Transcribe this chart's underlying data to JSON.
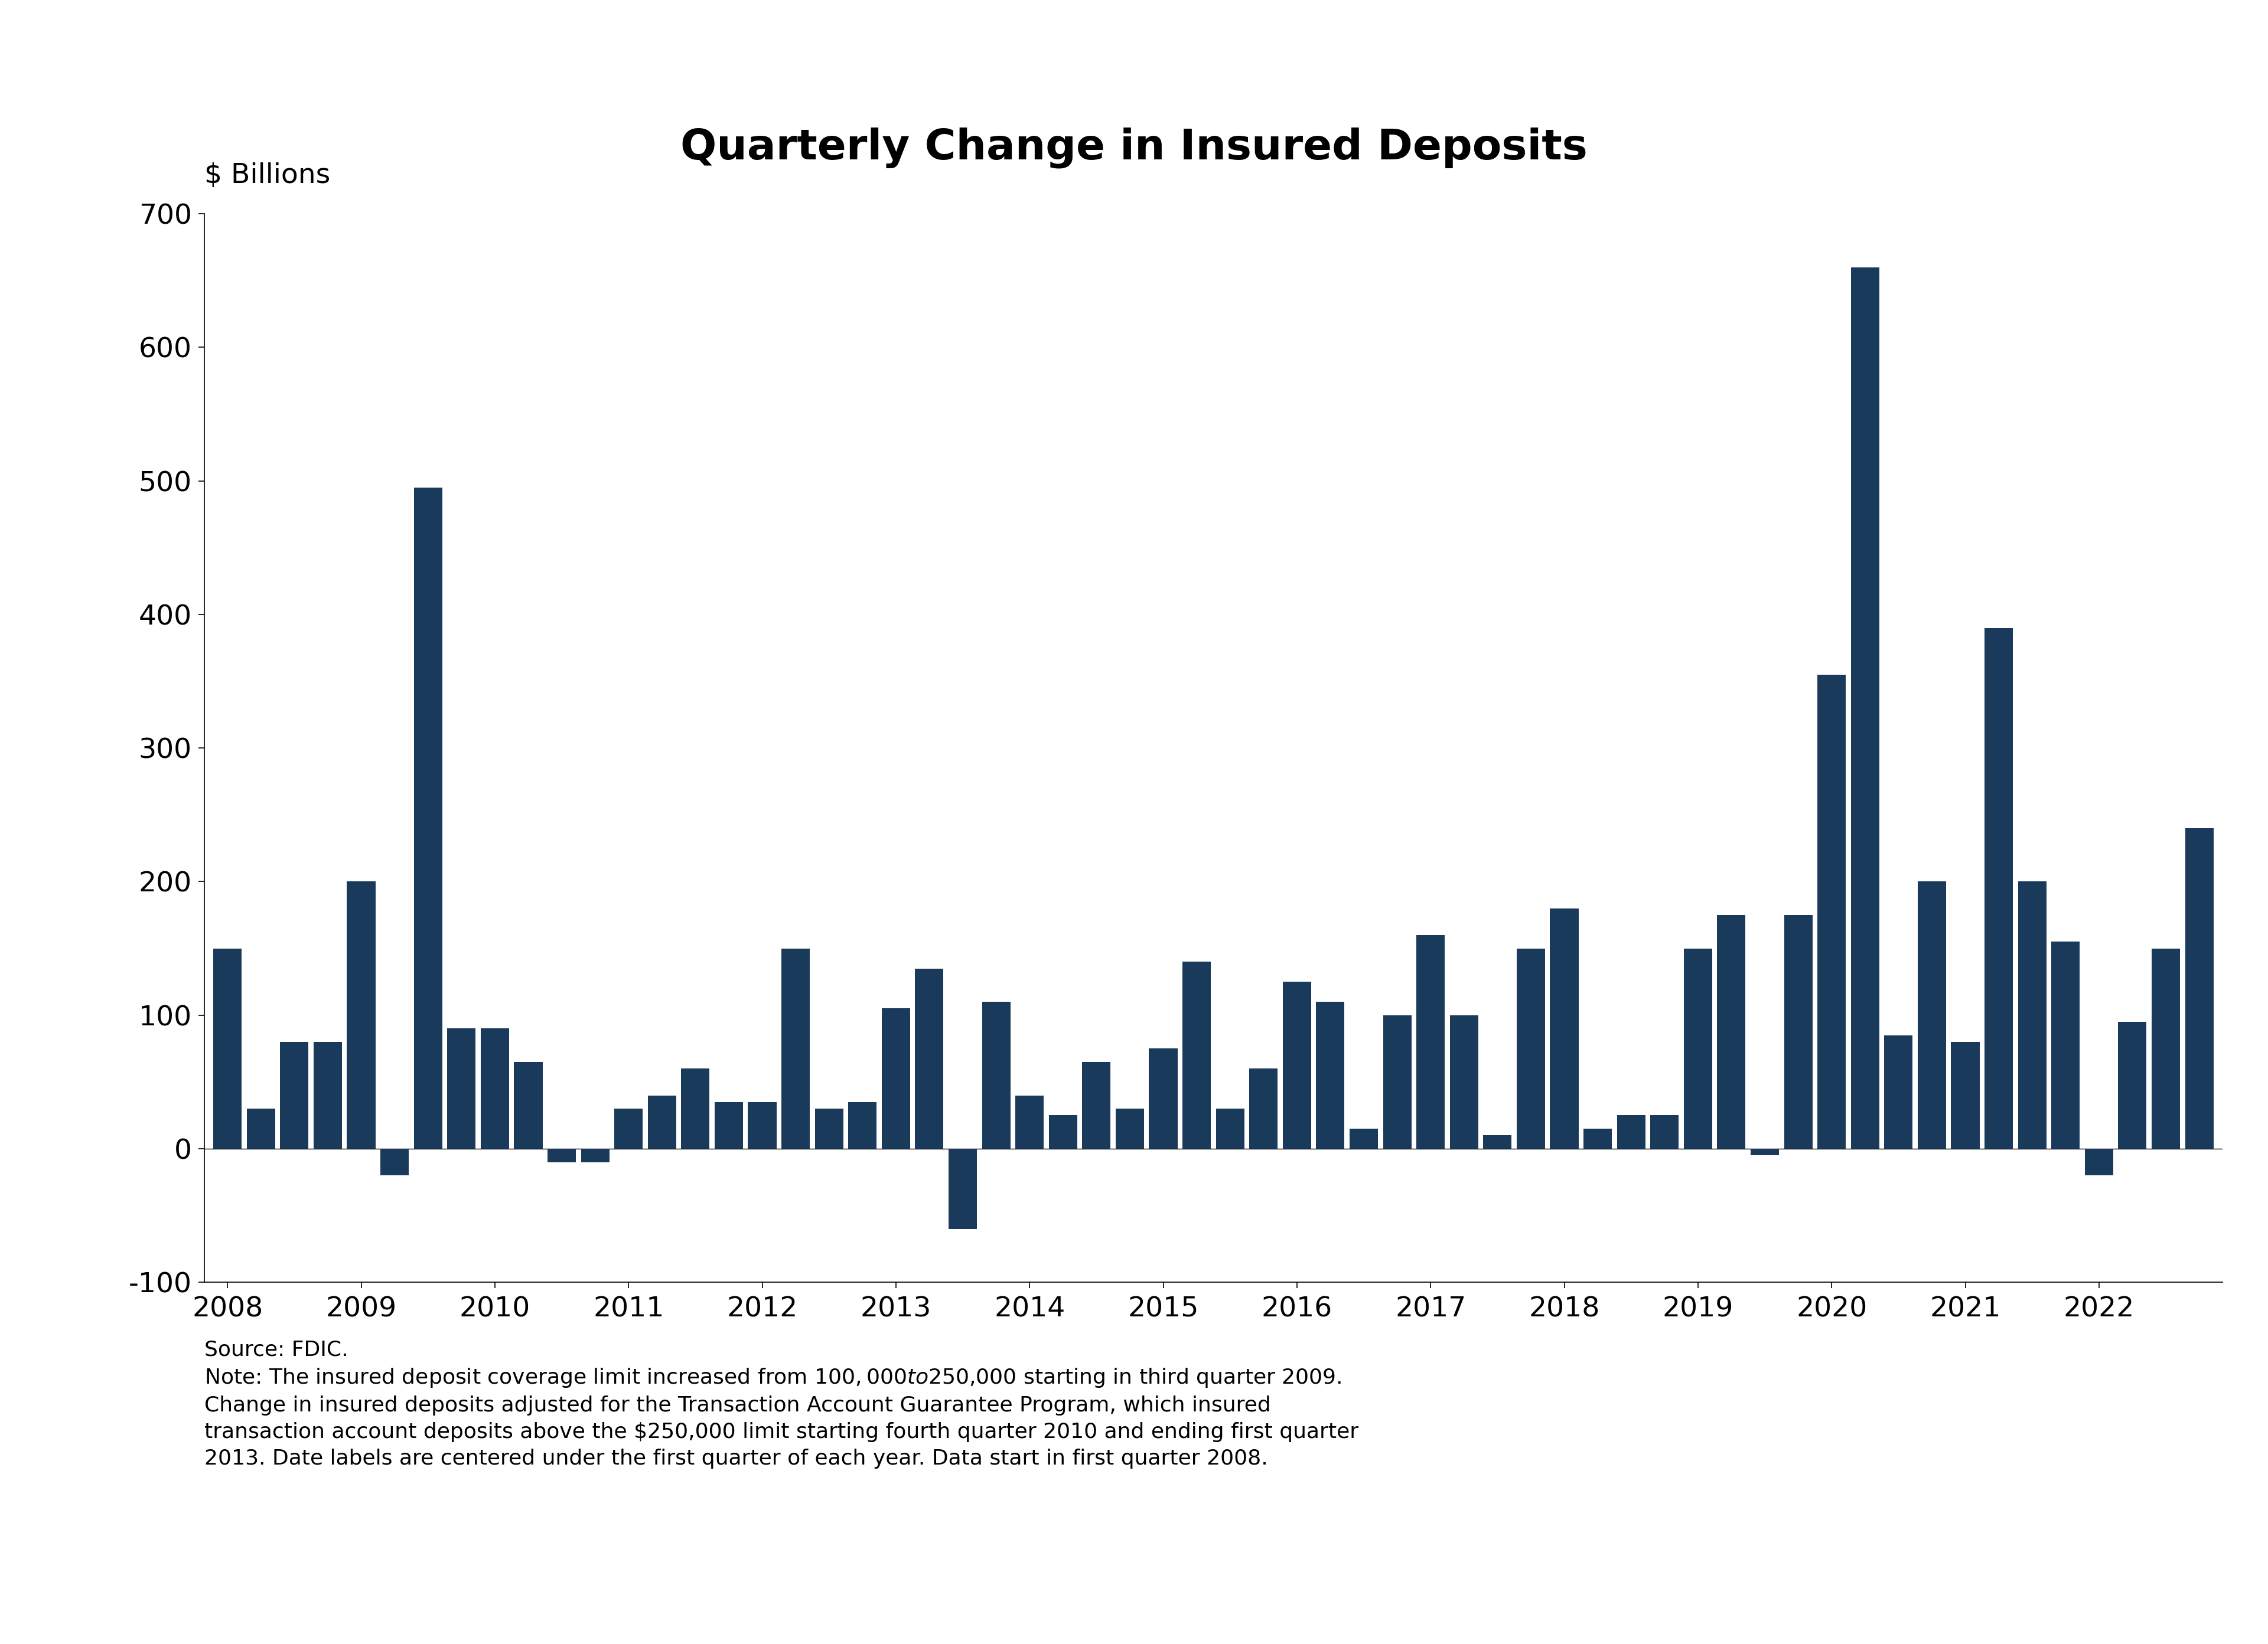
{
  "title": "Quarterly Change in Insured Deposits",
  "ylabel": "$ Billions",
  "bar_color": "#1a3a5c",
  "background_color": "#ffffff",
  "ylim": [
    -100,
    700
  ],
  "yticks": [
    -100,
    0,
    100,
    200,
    300,
    400,
    500,
    600,
    700
  ],
  "values": [
    150,
    30,
    80,
    80,
    200,
    -20,
    495,
    90,
    90,
    65,
    -10,
    -10,
    30,
    40,
    60,
    35,
    35,
    150,
    30,
    35,
    105,
    135,
    -60,
    110,
    40,
    25,
    65,
    30,
    75,
    140,
    30,
    60,
    125,
    110,
    15,
    100,
    160,
    100,
    10,
    150,
    180,
    15,
    25,
    25,
    150,
    175,
    -5,
    175,
    355,
    660,
    85,
    200,
    80,
    390,
    200,
    155,
    -20,
    95,
    150,
    240
  ],
  "year_labels": [
    "2008",
    "2009",
    "2010",
    "2011",
    "2012",
    "2013",
    "2014",
    "2015",
    "2016",
    "2017",
    "2018",
    "2019",
    "2020",
    "2021",
    "2022"
  ],
  "year_label_quarter": [
    0,
    4,
    8,
    12,
    16,
    20,
    24,
    28,
    32,
    36,
    40,
    44,
    48,
    52,
    56
  ],
  "source_line1": "Source: FDIC.",
  "source_line2": "Note: The insured deposit coverage limit increased from $100,000 to $250,000 starting in third quarter 2009.",
  "source_line3": "Change in insured deposits adjusted for the Transaction Account Guarantee Program, which insured",
  "source_line4": "transaction account deposits above the $250,000 limit starting fourth quarter 2010 and ending first quarter",
  "source_line5": "2013. Date labels are centered under the first quarter of each year. Data start in first quarter 2008.",
  "title_fontsize": 52,
  "axis_label_fontsize": 34,
  "tick_fontsize": 34,
  "source_fontsize": 26
}
